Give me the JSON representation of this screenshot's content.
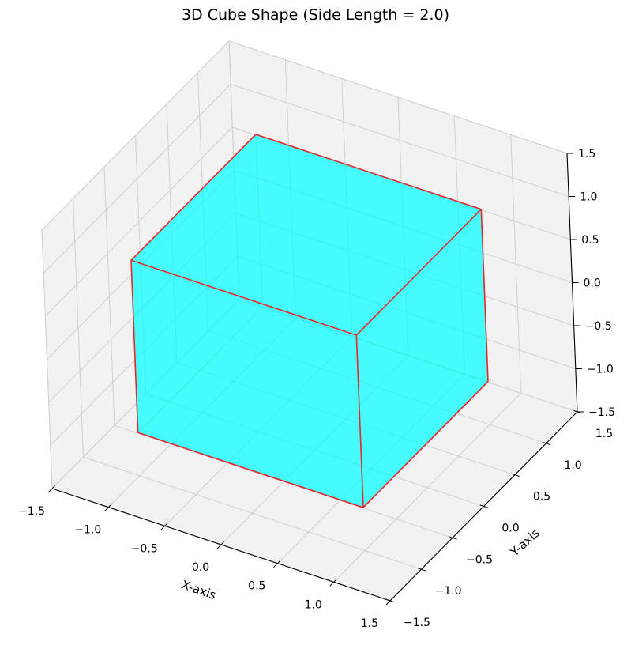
{
  "chart_data": {
    "type": "3d-surface",
    "title": "3D Cube Shape (Side Length = 2.0)",
    "xlabel": "X-axis",
    "ylabel": "Y-axis",
    "zlabel": "",
    "xlim": [
      -1.5,
      1.5
    ],
    "ylim": [
      -1.5,
      1.5
    ],
    "zlim": [
      -1.5,
      1.5
    ],
    "xticks": [
      "−1.5",
      "−1.0",
      "−0.5",
      "0.0",
      "0.5",
      "1.0",
      "1.5"
    ],
    "yticks": [
      "−1.5",
      "−1.0",
      "−0.5",
      "0.0",
      "0.5",
      "1.0",
      "1.5"
    ],
    "zticks": [
      "−1.5",
      "−1.0",
      "−0.5",
      "0.0",
      "0.5",
      "1.0",
      "1.5"
    ],
    "cube": {
      "side_length": 2.0,
      "center": [
        0,
        0,
        0
      ],
      "face_color": "#00ffff",
      "face_alpha": 0.85,
      "edge_color": "#e8262a"
    },
    "pane_color": "#f2f2f2",
    "grid": true
  }
}
